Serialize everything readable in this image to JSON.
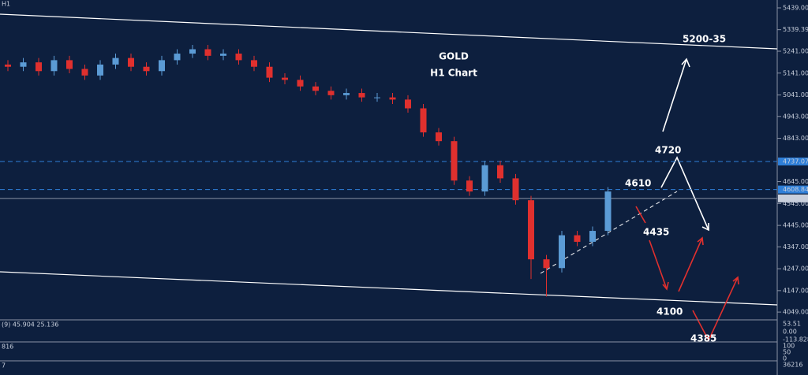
{
  "chart_data": {
    "type": "candlestick",
    "title": "GOLD",
    "subtitle": "H1 Chart",
    "timeframe": "H1",
    "categories": [
      null,
      null,
      null,
      null,
      null,
      null,
      null,
      null,
      null,
      null,
      null,
      null,
      null,
      null,
      null,
      null,
      null,
      null,
      null,
      null,
      null,
      null,
      null,
      null,
      null,
      null,
      null,
      null,
      null,
      null,
      null,
      null,
      null,
      null,
      null,
      null,
      null,
      null,
      null,
      null
    ],
    "open": [
      5180,
      5170,
      5190,
      5150,
      5200,
      5160,
      5130,
      5180,
      5210,
      5170,
      5150,
      5200,
      5230,
      5250,
      5220,
      5230,
      5200,
      5170,
      5120,
      5110,
      5080,
      5060,
      5040,
      5050,
      5030,
      5030,
      5020,
      4980,
      4870,
      4830,
      4650,
      4600,
      4720,
      4660,
      4560,
      4290,
      4250,
      4400,
      4370,
      4420
    ],
    "high": [
      5200,
      5210,
      5210,
      5220,
      5220,
      5180,
      5200,
      5230,
      5230,
      5190,
      5220,
      5250,
      5270,
      5270,
      5250,
      5250,
      5220,
      5190,
      5140,
      5130,
      5100,
      5080,
      5070,
      5070,
      5050,
      5050,
      5040,
      5000,
      4890,
      4850,
      4670,
      4740,
      4740,
      4680,
      4580,
      4310,
      4420,
      4420,
      4440,
      4620
    ],
    "low": [
      5150,
      5150,
      5130,
      5130,
      5140,
      5110,
      5110,
      5160,
      5150,
      5130,
      5130,
      5180,
      5210,
      5200,
      5200,
      5180,
      5150,
      5100,
      5090,
      5060,
      5040,
      5020,
      5020,
      5010,
      5010,
      5000,
      4960,
      4850,
      4810,
      4630,
      4580,
      4580,
      4640,
      4540,
      4200,
      4120,
      4230,
      4350,
      4350,
      4400
    ],
    "close": [
      5170,
      5190,
      5150,
      5200,
      5160,
      5130,
      5180,
      5210,
      5170,
      5150,
      5200,
      5230,
      5250,
      5220,
      5230,
      5200,
      5170,
      5120,
      5110,
      5080,
      5060,
      5040,
      5050,
      5030,
      5030,
      5020,
      4980,
      4870,
      4830,
      4650,
      4600,
      4720,
      4660,
      4560,
      4290,
      4250,
      4400,
      4370,
      4420,
      4600
    ],
    "up_color": "#5b9bd5",
    "down_color": "#e0302e",
    "ylim": [
      4017,
      5475
    ],
    "yticks": [
      {
        "value": 5439,
        "label": "5439.00"
      },
      {
        "value": 5339.39,
        "label": "5339.39"
      },
      {
        "value": 5241,
        "label": "5241.00"
      },
      {
        "value": 5141,
        "label": "5141.00"
      },
      {
        "value": 5041,
        "label": "5041.00"
      },
      {
        "value": 4943,
        "label": "4943.00"
      },
      {
        "value": 4843,
        "label": "4843.00"
      },
      {
        "value": 4645,
        "label": "4645.00"
      },
      {
        "value": 4545,
        "label": "4545.00"
      },
      {
        "value": 4445,
        "label": "4445.00"
      },
      {
        "value": 4347,
        "label": "4347.00"
      },
      {
        "value": 4247,
        "label": "4247.00"
      },
      {
        "value": 4147,
        "label": "4147.00"
      },
      {
        "value": 4049,
        "label": "4049.00"
      }
    ],
    "price_levels": [
      {
        "value": 4737.07,
        "label": "4737.07"
      },
      {
        "value": 4608.84,
        "label": "4608.84"
      },
      {
        "value": 4568.42,
        "label": "4568.42"
      }
    ],
    "annotations": [
      "5200-35",
      "4720",
      "4610",
      "4435",
      "4100",
      "4385"
    ],
    "indicators": [
      {
        "label": "(9) 45.904 25.136",
        "scale": [
          "53.51",
          "0.00",
          "-113.828"
        ]
      },
      {
        "label": "816",
        "scale": [
          "100",
          "50",
          "0"
        ]
      },
      {
        "label": "7",
        "scale": [
          "36216"
        ]
      }
    ]
  }
}
